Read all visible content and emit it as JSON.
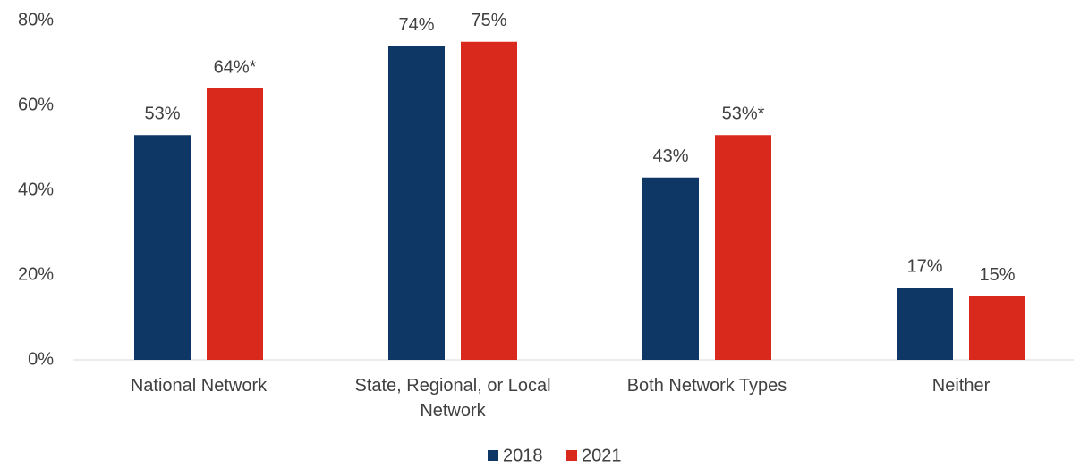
{
  "chart_data": {
    "type": "bar",
    "categories": [
      "National Network",
      "State, Regional, or Local Network",
      "Both Network Types",
      "Neither"
    ],
    "series": [
      {
        "name": "2018",
        "color": "#0e3766",
        "values": [
          53,
          74,
          43,
          17
        ],
        "value_labels": [
          "53%",
          "74%",
          "43%",
          "17%"
        ]
      },
      {
        "name": "2021",
        "color": "#d9291c",
        "values": [
          64,
          75,
          53,
          15
        ],
        "value_labels": [
          "64%*",
          "75%",
          "53%*",
          "15%"
        ]
      }
    ],
    "ylim": [
      0,
      80
    ],
    "yticks": [
      {
        "value": 0,
        "label": "0%"
      },
      {
        "value": 20,
        "label": "20%"
      },
      {
        "value": 40,
        "label": "40%"
      },
      {
        "value": 60,
        "label": "60%"
      },
      {
        "value": 80,
        "label": "80%"
      }
    ],
    "grid": false,
    "legend": "bottom"
  }
}
